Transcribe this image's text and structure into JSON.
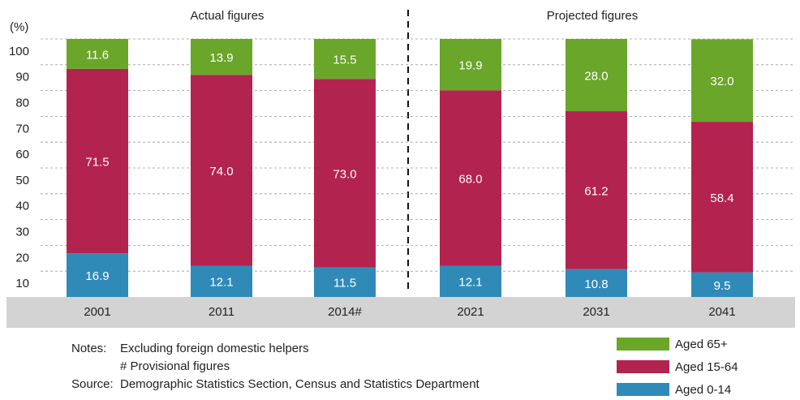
{
  "chart_data": {
    "type": "stacked_bar",
    "y_label": "(%)",
    "annotations": [
      "Actual figures",
      "Projected figures"
    ],
    "categories": [
      "2001",
      "2011",
      "2014#",
      "2021",
      "2031",
      "2041"
    ],
    "series": [
      {
        "name": "Aged 0-14",
        "color": "#2f8ab8",
        "values": [
          16.9,
          12.1,
          11.5,
          12.1,
          10.8,
          9.5
        ],
        "value_labels": [
          "16.9",
          "12.1",
          "11.5",
          "12.1",
          "10.8",
          "9.5"
        ]
      },
      {
        "name": "Aged 15-64",
        "color": "#b3234f",
        "values": [
          71.5,
          74.0,
          73.0,
          68.0,
          61.2,
          58.4
        ],
        "value_labels": [
          "71.5",
          "74.0",
          "73.0",
          "68.0",
          "61.2",
          "58.4"
        ]
      },
      {
        "name": "Aged 65+",
        "color": "#6aa629",
        "values": [
          11.6,
          13.9,
          15.5,
          19.9,
          28.0,
          32.0
        ],
        "value_labels": [
          "11.6",
          "13.9",
          "15.5",
          "19.9",
          "28.0",
          "32.0"
        ]
      }
    ],
    "ylim": [
      0,
      100
    ],
    "yticks": [
      10,
      20,
      30,
      40,
      50,
      60,
      70,
      80,
      90,
      100
    ],
    "grid": true,
    "notes": {
      "label": "Notes:",
      "lines": [
        "Excluding foreign domestic helpers",
        "# Provisional figures"
      ]
    },
    "source": {
      "label": "Source:",
      "text": "Demographic Statistics Section, Census and Statistics Department"
    }
  }
}
